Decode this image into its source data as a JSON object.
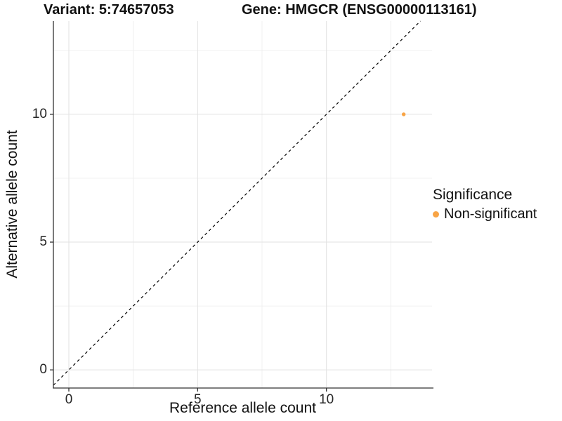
{
  "chart_data": {
    "type": "scatter",
    "title_left": "Variant: 5:74657053",
    "title_right": "Gene: HMGCR (ENSG00000113161)",
    "xlabel": "Reference allele count",
    "ylabel": "Alternative allele count",
    "xlim": [
      -0.6,
      14.1
    ],
    "ylim": [
      -0.71,
      13.65
    ],
    "x_ticks": [
      0,
      5,
      10
    ],
    "y_ticks": [
      0,
      5,
      10
    ],
    "x_minor_ticks": [
      2.5,
      7.5,
      12.5
    ],
    "y_minor_ticks": [
      2.5,
      7.5,
      12.5
    ],
    "grid": "white panel, light-gray major and minor gridlines, black left/bottom axis lines",
    "series": [
      {
        "name": "Non-significant",
        "color": "#F8A445",
        "points": [
          {
            "x": 13,
            "y": 10
          }
        ]
      }
    ],
    "reference_line": {
      "style": "dashed",
      "color": "#000000",
      "slope": 1,
      "intercept": 0
    },
    "legend": {
      "title": "Significance",
      "position": "right",
      "entries": [
        {
          "label": "Non-significant",
          "color": "#F8A445"
        }
      ]
    },
    "palette": {
      "major_grid": "#E2E2E2",
      "minor_grid": "#F0F0F0",
      "axis_line": "#333333"
    }
  }
}
